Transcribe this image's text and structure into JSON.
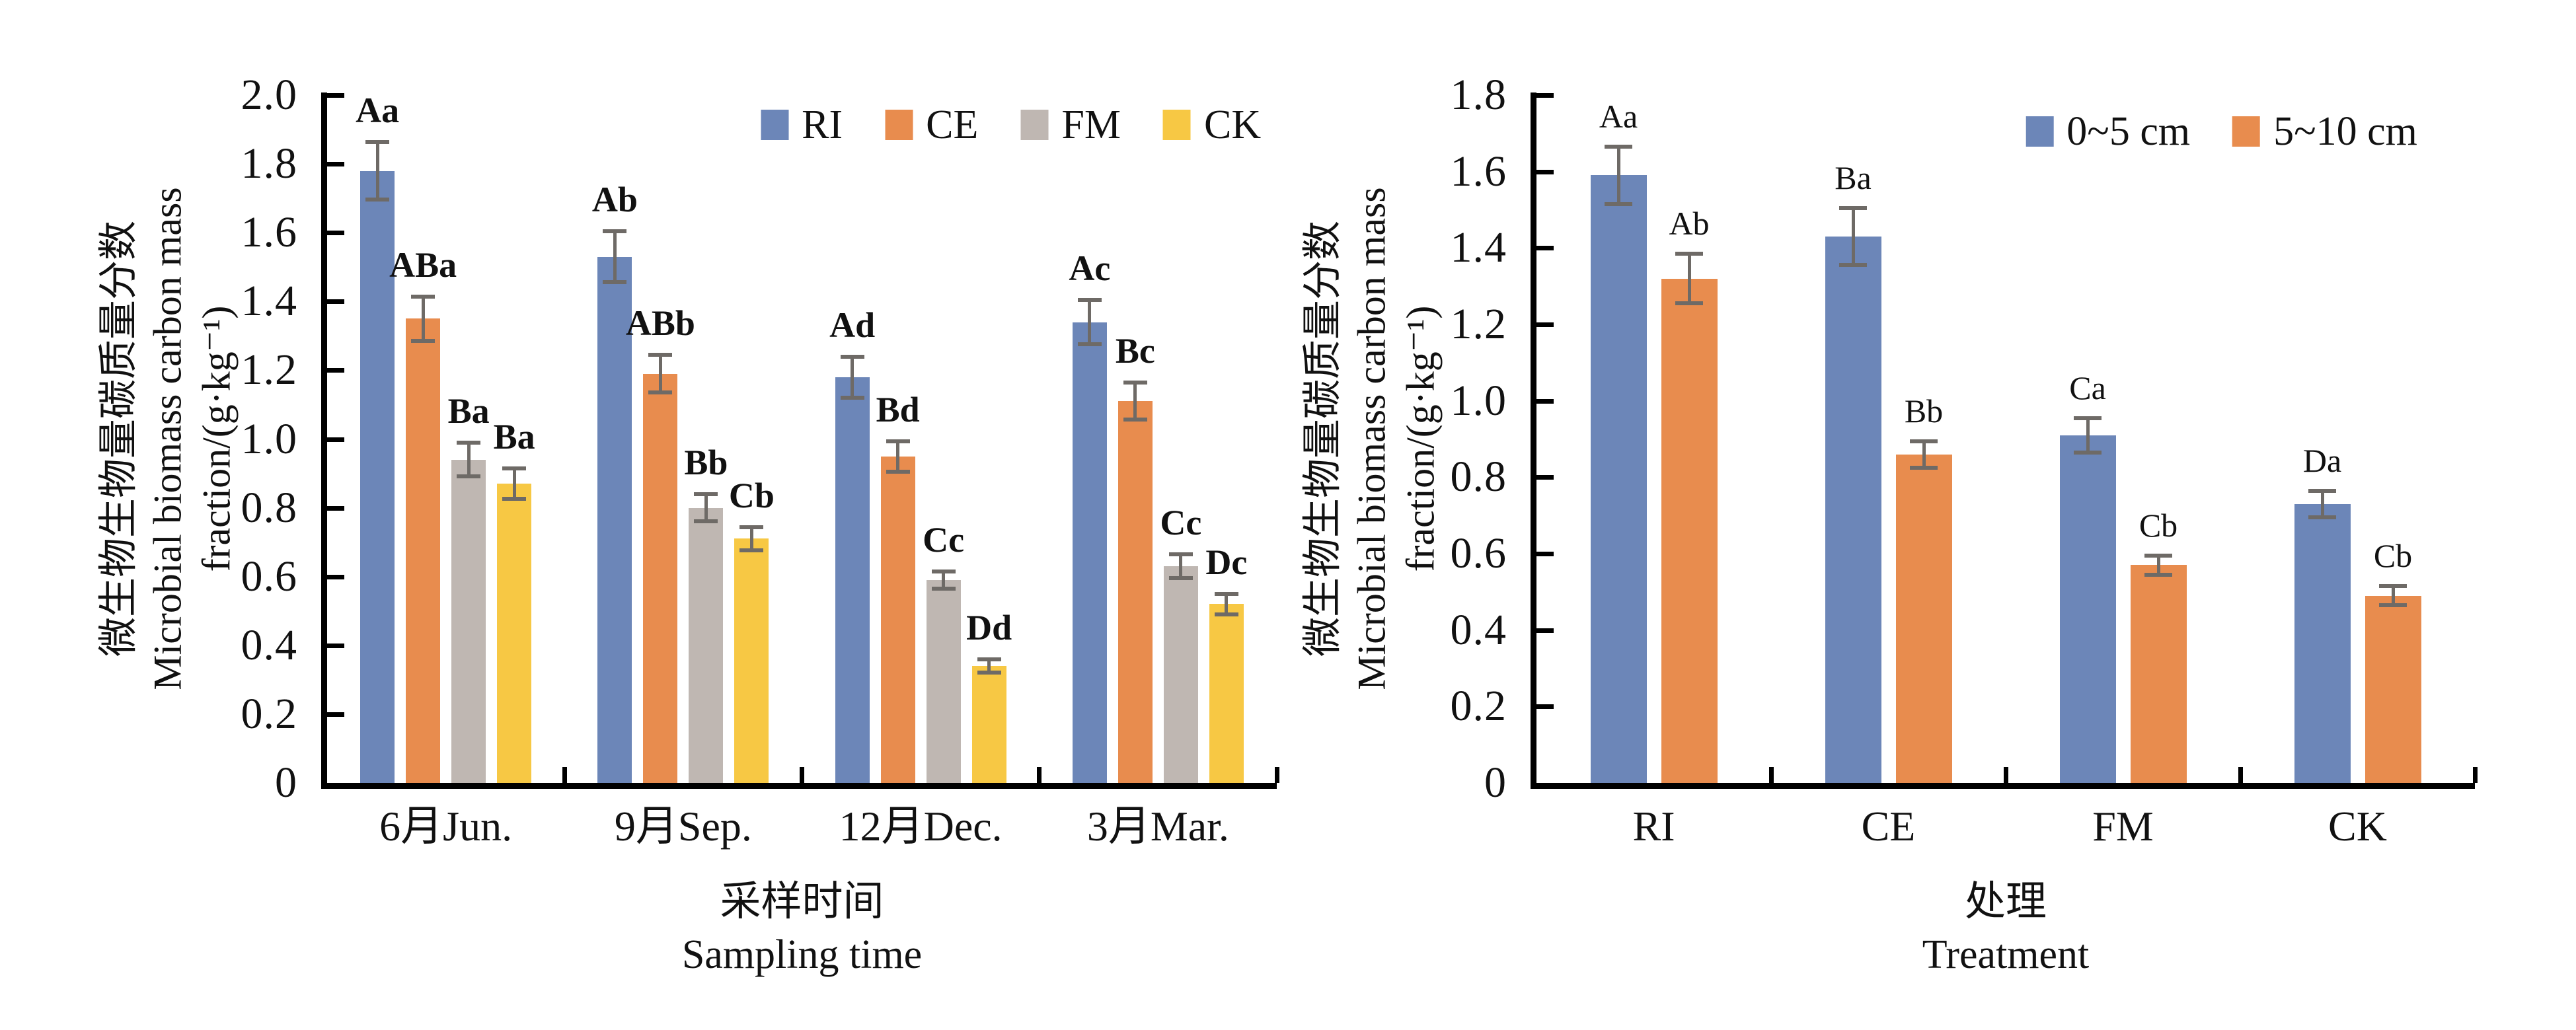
{
  "figure": {
    "background": "#ffffff",
    "axis_color": "#000000",
    "error_bar_color": "#6e6a66",
    "series_colors": {
      "RI": "#6c86b8",
      "CE": "#e88c4e",
      "FM": "#bfb7b2",
      "CK": "#f7c844"
    }
  },
  "chart_data": [
    {
      "type": "bar",
      "title": "",
      "ylabel_zh": "微生物生物量碳质量分数",
      "ylabel_en": "Microbial biomass carbon mass",
      "ylabel_unit": "fraction/(g·kg⁻¹)",
      "xlabel_zh": "采样时间",
      "xlabel_en": "Sampling time",
      "ylim": [
        0,
        2.0
      ],
      "ytick_step": 0.2,
      "ytick_labels": [
        "0",
        "0.2",
        "0.4",
        "0.6",
        "0.8",
        "1.0",
        "1.2",
        "1.4",
        "1.6",
        "1.8",
        "2.0"
      ],
      "grid": false,
      "legend_position": "top-center-right",
      "categories": [
        "6月Jun.",
        "9月Sep.",
        "12月Dec.",
        "3月Mar."
      ],
      "series": [
        {
          "name": "RI",
          "color": "#6c86b8",
          "values": [
            1.78,
            1.53,
            1.18,
            1.34
          ],
          "errors": [
            0.09,
            0.08,
            0.065,
            0.07
          ],
          "sig_labels": [
            "Aa",
            "Ab",
            "Ad",
            "Ac"
          ]
        },
        {
          "name": "CE",
          "color": "#e88c4e",
          "values": [
            1.35,
            1.19,
            0.95,
            1.11
          ],
          "errors": [
            0.07,
            0.06,
            0.05,
            0.06
          ],
          "sig_labels": [
            "ABa",
            "ABb",
            "Bd",
            "Bc"
          ]
        },
        {
          "name": "FM",
          "color": "#bfb7b2",
          "values": [
            0.94,
            0.8,
            0.59,
            0.63
          ],
          "errors": [
            0.055,
            0.045,
            0.03,
            0.04
          ],
          "sig_labels": [
            "Ba",
            "Bb",
            "Cc",
            "Cc"
          ]
        },
        {
          "name": "CK",
          "color": "#f7c844",
          "values": [
            0.87,
            0.71,
            0.34,
            0.52
          ],
          "errors": [
            0.05,
            0.04,
            0.025,
            0.035
          ],
          "sig_labels": [
            "Ba",
            "Cb",
            "Dd",
            "Dc"
          ]
        }
      ]
    },
    {
      "type": "bar",
      "title": "",
      "ylabel_zh": "微生物生物量碳质量分数",
      "ylabel_en": "Microbial biomass carbon mass",
      "ylabel_unit": "fraction/(g·kg⁻¹)",
      "xlabel_zh": "处理",
      "xlabel_en": "Treatment",
      "ylim": [
        0,
        1.8
      ],
      "ytick_step": 0.2,
      "ytick_labels": [
        "0",
        "0.2",
        "0.4",
        "0.6",
        "0.8",
        "1.0",
        "1.2",
        "1.4",
        "1.6",
        "1.8"
      ],
      "grid": false,
      "legend_position": "top-center-right",
      "categories": [
        "RI",
        "CE",
        "FM",
        "CK"
      ],
      "series": [
        {
          "name": "0~5 cm",
          "color": "#6c86b8",
          "values": [
            1.59,
            1.43,
            0.91,
            0.73
          ],
          "errors": [
            0.08,
            0.08,
            0.05,
            0.04
          ],
          "sig_labels": [
            "Aa",
            "Ba",
            "Ca",
            "Da"
          ]
        },
        {
          "name": "5~10 cm",
          "color": "#e88c4e",
          "values": [
            1.32,
            0.86,
            0.57,
            0.49
          ],
          "errors": [
            0.07,
            0.04,
            0.03,
            0.03
          ],
          "sig_labels": [
            "Ab",
            "Bb",
            "Cb",
            "Cb"
          ]
        }
      ]
    }
  ]
}
